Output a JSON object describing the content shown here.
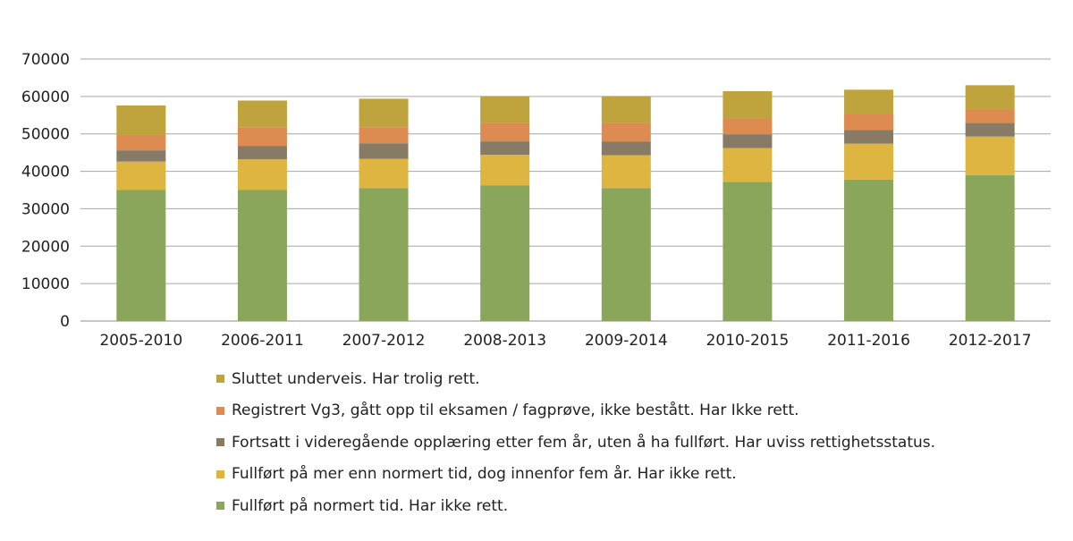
{
  "chart_data": {
    "type": "bar",
    "stacked": true,
    "categories": [
      "2005-2010",
      "2006-2011",
      "2007-2012",
      "2008-2013",
      "2009-2014",
      "2010-2015",
      "2011-2016",
      "2012-2017"
    ],
    "series": [
      {
        "name": "Fullført på normert tid. Har ikke rett.",
        "color": "#8aa65a",
        "values": [
          35000,
          35000,
          35500,
          36200,
          35500,
          37200,
          37800,
          39000
        ]
      },
      {
        "name": "Fullført på mer enn normert tid, dog innenfor fem år. Har ikke rett.",
        "color": "#ddb540",
        "values": [
          7600,
          8200,
          7800,
          8200,
          8800,
          9000,
          9600,
          10300
        ]
      },
      {
        "name": "Fortsatt i videregående opplæring etter fem år, uten å ha fullført. Har uviss rettighetsstatus.",
        "color": "#877b66",
        "values": [
          3000,
          3600,
          4200,
          3600,
          3600,
          3700,
          3600,
          3600
        ]
      },
      {
        "name": "Registrert Vg3, gått opp til eksamen / fagprøve, ikke bestått. Har Ikke rett.",
        "color": "#de8b52",
        "values": [
          4100,
          5000,
          4300,
          4900,
          5000,
          4200,
          4300,
          3600
        ]
      },
      {
        "name": "Sluttet underveis. Har trolig rett.",
        "color": "#bfa33c",
        "values": [
          7900,
          7100,
          7600,
          7200,
          7200,
          7300,
          6500,
          6500
        ]
      }
    ],
    "legend_order": [
      4,
      3,
      2,
      1,
      0
    ],
    "ylim": [
      0,
      70000
    ],
    "yticks": [
      "0",
      "10000",
      "20000",
      "30000",
      "40000",
      "50000",
      "60000",
      "70000"
    ],
    "grid": true,
    "legend_position": "bottom"
  }
}
